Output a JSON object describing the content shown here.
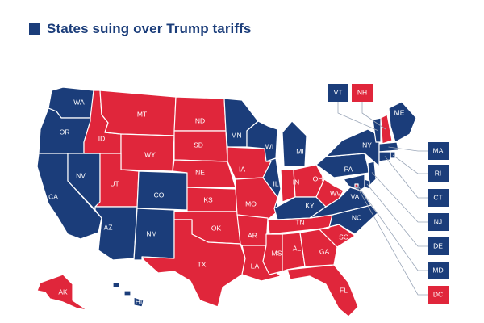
{
  "title": "States suing over Trump tariffs",
  "colors": {
    "suing": "#1b3d7a",
    "not_suing": "#e0263b",
    "border": "#ffffff",
    "leader": "#9aa6b8"
  },
  "states": [
    {
      "abbr": "WA",
      "suing": true
    },
    {
      "abbr": "OR",
      "suing": true
    },
    {
      "abbr": "CA",
      "suing": true
    },
    {
      "abbr": "NV",
      "suing": true
    },
    {
      "abbr": "ID",
      "suing": false
    },
    {
      "abbr": "MT",
      "suing": false
    },
    {
      "abbr": "WY",
      "suing": false
    },
    {
      "abbr": "UT",
      "suing": false
    },
    {
      "abbr": "AZ",
      "suing": true
    },
    {
      "abbr": "CO",
      "suing": true
    },
    {
      "abbr": "NM",
      "suing": true
    },
    {
      "abbr": "ND",
      "suing": false
    },
    {
      "abbr": "SD",
      "suing": false
    },
    {
      "abbr": "NE",
      "suing": false
    },
    {
      "abbr": "KS",
      "suing": false
    },
    {
      "abbr": "OK",
      "suing": false
    },
    {
      "abbr": "TX",
      "suing": false
    },
    {
      "abbr": "MN",
      "suing": true
    },
    {
      "abbr": "IA",
      "suing": false
    },
    {
      "abbr": "MO",
      "suing": false
    },
    {
      "abbr": "AR",
      "suing": false
    },
    {
      "abbr": "LA",
      "suing": false
    },
    {
      "abbr": "WI",
      "suing": true
    },
    {
      "abbr": "IL",
      "suing": true
    },
    {
      "abbr": "MI",
      "suing": true
    },
    {
      "abbr": "IN",
      "suing": false
    },
    {
      "abbr": "OH",
      "suing": false
    },
    {
      "abbr": "KY",
      "suing": true
    },
    {
      "abbr": "TN",
      "suing": false
    },
    {
      "abbr": "MS",
      "suing": false
    },
    {
      "abbr": "AL",
      "suing": false
    },
    {
      "abbr": "GA",
      "suing": false
    },
    {
      "abbr": "FL",
      "suing": false
    },
    {
      "abbr": "SC",
      "suing": false
    },
    {
      "abbr": "NC",
      "suing": true
    },
    {
      "abbr": "VA",
      "suing": true
    },
    {
      "abbr": "WV",
      "suing": false
    },
    {
      "abbr": "PA",
      "suing": true
    },
    {
      "abbr": "NY",
      "suing": true
    },
    {
      "abbr": "ME",
      "suing": true
    },
    {
      "abbr": "AK",
      "suing": false
    },
    {
      "abbr": "HI",
      "suing": true
    }
  ],
  "callouts": [
    {
      "abbr": "VT",
      "suing": true
    },
    {
      "abbr": "NH",
      "suing": false
    },
    {
      "abbr": "MA",
      "suing": true
    },
    {
      "abbr": "RI",
      "suing": true
    },
    {
      "abbr": "CT",
      "suing": true
    },
    {
      "abbr": "NJ",
      "suing": true
    },
    {
      "abbr": "DE",
      "suing": true
    },
    {
      "abbr": "MD",
      "suing": true
    },
    {
      "abbr": "DC",
      "suing": false
    }
  ]
}
